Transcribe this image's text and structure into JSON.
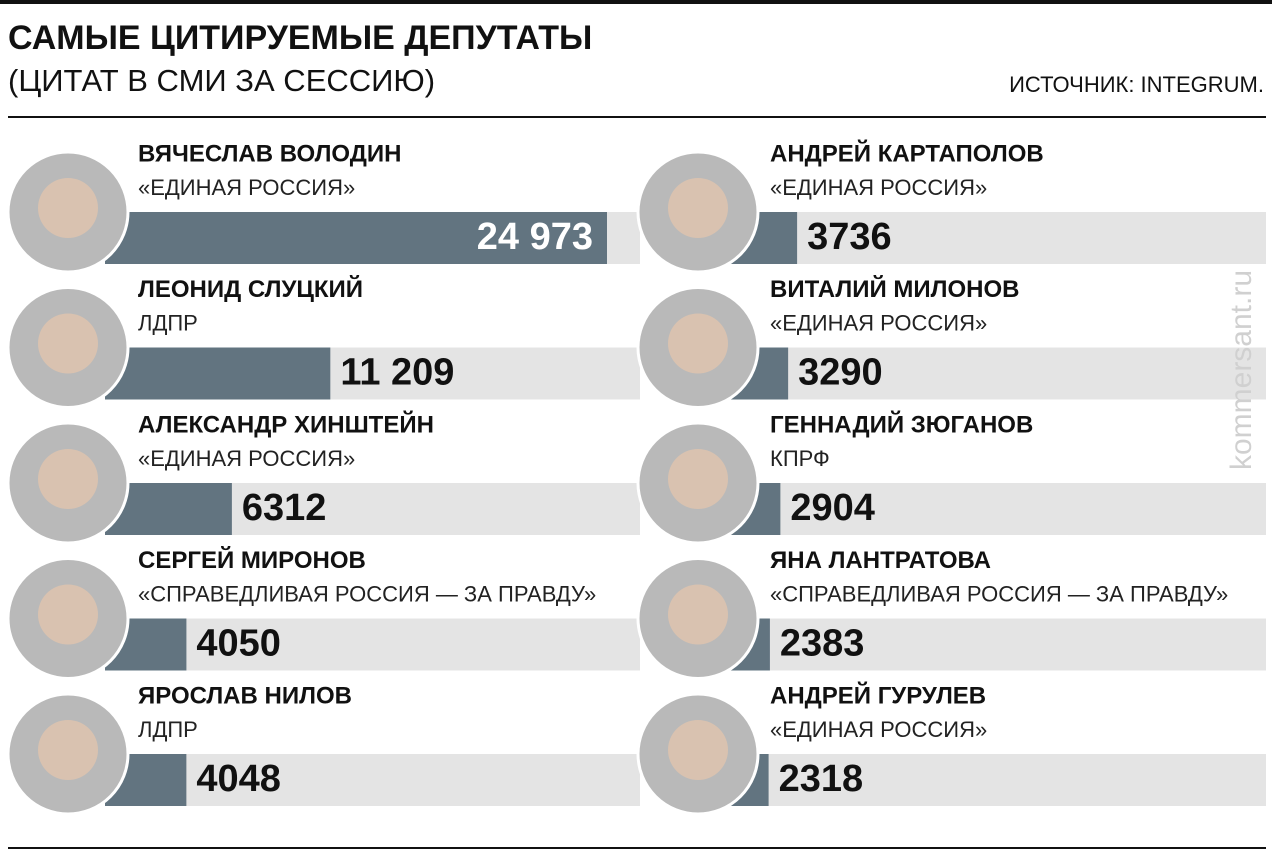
{
  "chart_data": {
    "type": "bar",
    "title": "САМЫЕ ЦИТИРУЕМЫЕ ДЕПУТАТЫ",
    "subtitle": "(ЦИТАТ В СМИ ЗА СЕССИЮ)",
    "source": "ИСТОЧНИК: INTEGRUM.",
    "watermark": "kommersant.ru",
    "categories": [
      "ВЯЧЕСЛАВ ВОЛОДИН",
      "ЛЕОНИД СЛУЦКИЙ",
      "АЛЕКСАНДР ХИНШТЕЙН",
      "СЕРГЕЙ МИРОНОВ",
      "ЯРОСЛАВ НИЛОВ",
      "АНДРЕЙ КАРТАПОЛОВ",
      "ВИТАЛИЙ МИЛОНОВ",
      "ГЕННАДИЙ ЗЮГАНОВ",
      "ЯНА ЛАНТРАТОВА",
      "АНДРЕЙ ГУРУЛЕВ"
    ],
    "parties": [
      "«ЕДИНАЯ РОССИЯ»",
      "ЛДПР",
      "«ЕДИНАЯ РОССИЯ»",
      "«СПРАВЕДЛИВАЯ РОССИЯ — ЗА ПРАВДУ»",
      "ЛДПР",
      "«ЕДИНАЯ РОССИЯ»",
      "«ЕДИНАЯ РОССИЯ»",
      "КПРФ",
      "«СПРАВЕДЛИВАЯ РОССИЯ — ЗА ПРАВДУ»",
      "«ЕДИНАЯ РОССИЯ»"
    ],
    "values": [
      24973,
      11209,
      6312,
      4050,
      4048,
      3736,
      3290,
      2904,
      2383,
      2318
    ],
    "value_labels": [
      "24 973",
      "11 209",
      "6312",
      "4050",
      "4048",
      "3736",
      "3290",
      "2904",
      "2383",
      "2318"
    ],
    "color": "#627480",
    "lane_color": "#e4e4e4"
  }
}
